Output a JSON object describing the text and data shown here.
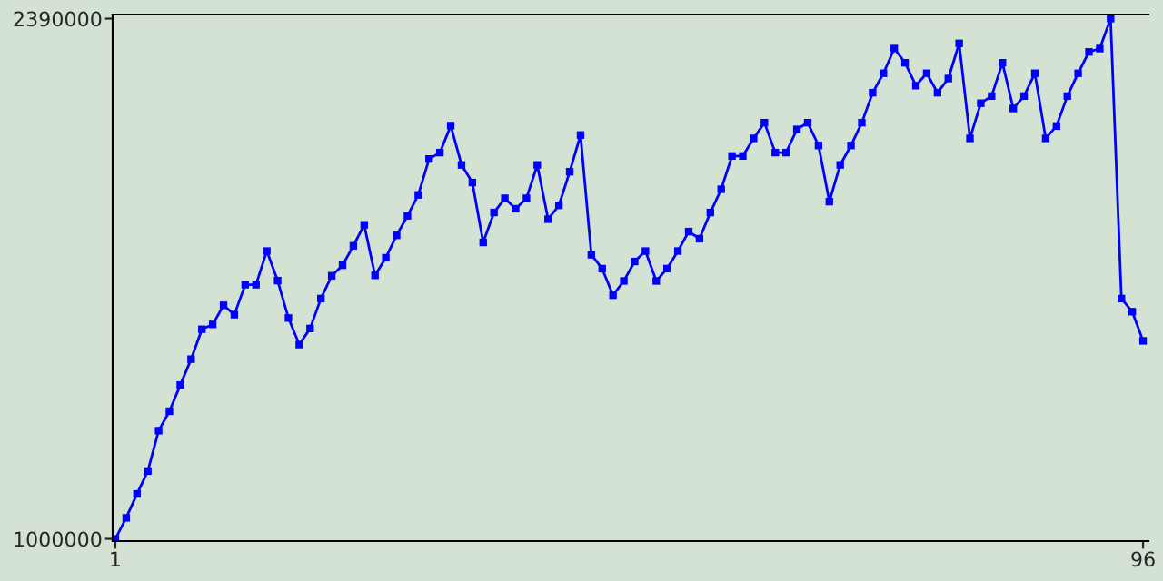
{
  "chart_data": {
    "type": "line",
    "x": [
      1,
      2,
      3,
      4,
      5,
      6,
      7,
      8,
      9,
      10,
      11,
      12,
      13,
      14,
      15,
      16,
      17,
      18,
      19,
      20,
      21,
      22,
      23,
      24,
      25,
      26,
      27,
      28,
      29,
      30,
      31,
      32,
      33,
      34,
      35,
      36,
      37,
      38,
      39,
      40,
      41,
      42,
      43,
      44,
      45,
      46,
      47,
      48,
      49,
      50,
      51,
      52,
      53,
      54,
      55,
      56,
      57,
      58,
      59,
      60,
      61,
      62,
      63,
      64,
      65,
      66,
      67,
      68,
      69,
      70,
      71,
      72,
      73,
      74,
      75,
      76,
      77,
      78,
      79,
      80,
      81,
      82,
      83,
      84,
      85,
      86,
      87,
      88,
      89,
      90,
      91,
      92,
      93,
      94,
      95,
      96
    ],
    "series": [
      {
        "color": "#0000ff",
        "values": [
          1000000,
          1056000,
          1120000,
          1181000,
          1289000,
          1341000,
          1411000,
          1480000,
          1560000,
          1573000,
          1624000,
          1599000,
          1679000,
          1679000,
          1769000,
          1690000,
          1590000,
          1519000,
          1562000,
          1642000,
          1703000,
          1731000,
          1783000,
          1839000,
          1704000,
          1751000,
          1811000,
          1863000,
          1919000,
          2015000,
          2032000,
          2104000,
          1999000,
          1952000,
          1792000,
          1872000,
          1910000,
          1882000,
          1910000,
          1999000,
          1854000,
          1891000,
          1981000,
          2079000,
          1759000,
          1722000,
          1651000,
          1689000,
          1741000,
          1769000,
          1689000,
          1722000,
          1769000,
          1821000,
          1802000,
          1872000,
          1934000,
          2023000,
          2023000,
          2070000,
          2112000,
          2032000,
          2032000,
          2094000,
          2112000,
          2051000,
          1901000,
          1999000,
          2051000,
          2112000,
          2192000,
          2244000,
          2310000,
          2272000,
          2211000,
          2244000,
          2192000,
          2230000,
          2324000,
          2070000,
          2164000,
          2183000,
          2272000,
          2150000,
          2183000,
          2244000,
          2070000,
          2103000,
          2183000,
          2244000,
          2301000,
          2310000,
          2390000,
          1642000,
          1607000,
          1529000
        ]
      }
    ],
    "xlim": [
      0.75,
      96.5
    ],
    "xticks": [
      1,
      96
    ],
    "ylim": [
      994000,
      2401000
    ],
    "yticks": [
      1000000,
      2390000
    ],
    "marker": "square",
    "line_style": "solid",
    "grid": false
  }
}
